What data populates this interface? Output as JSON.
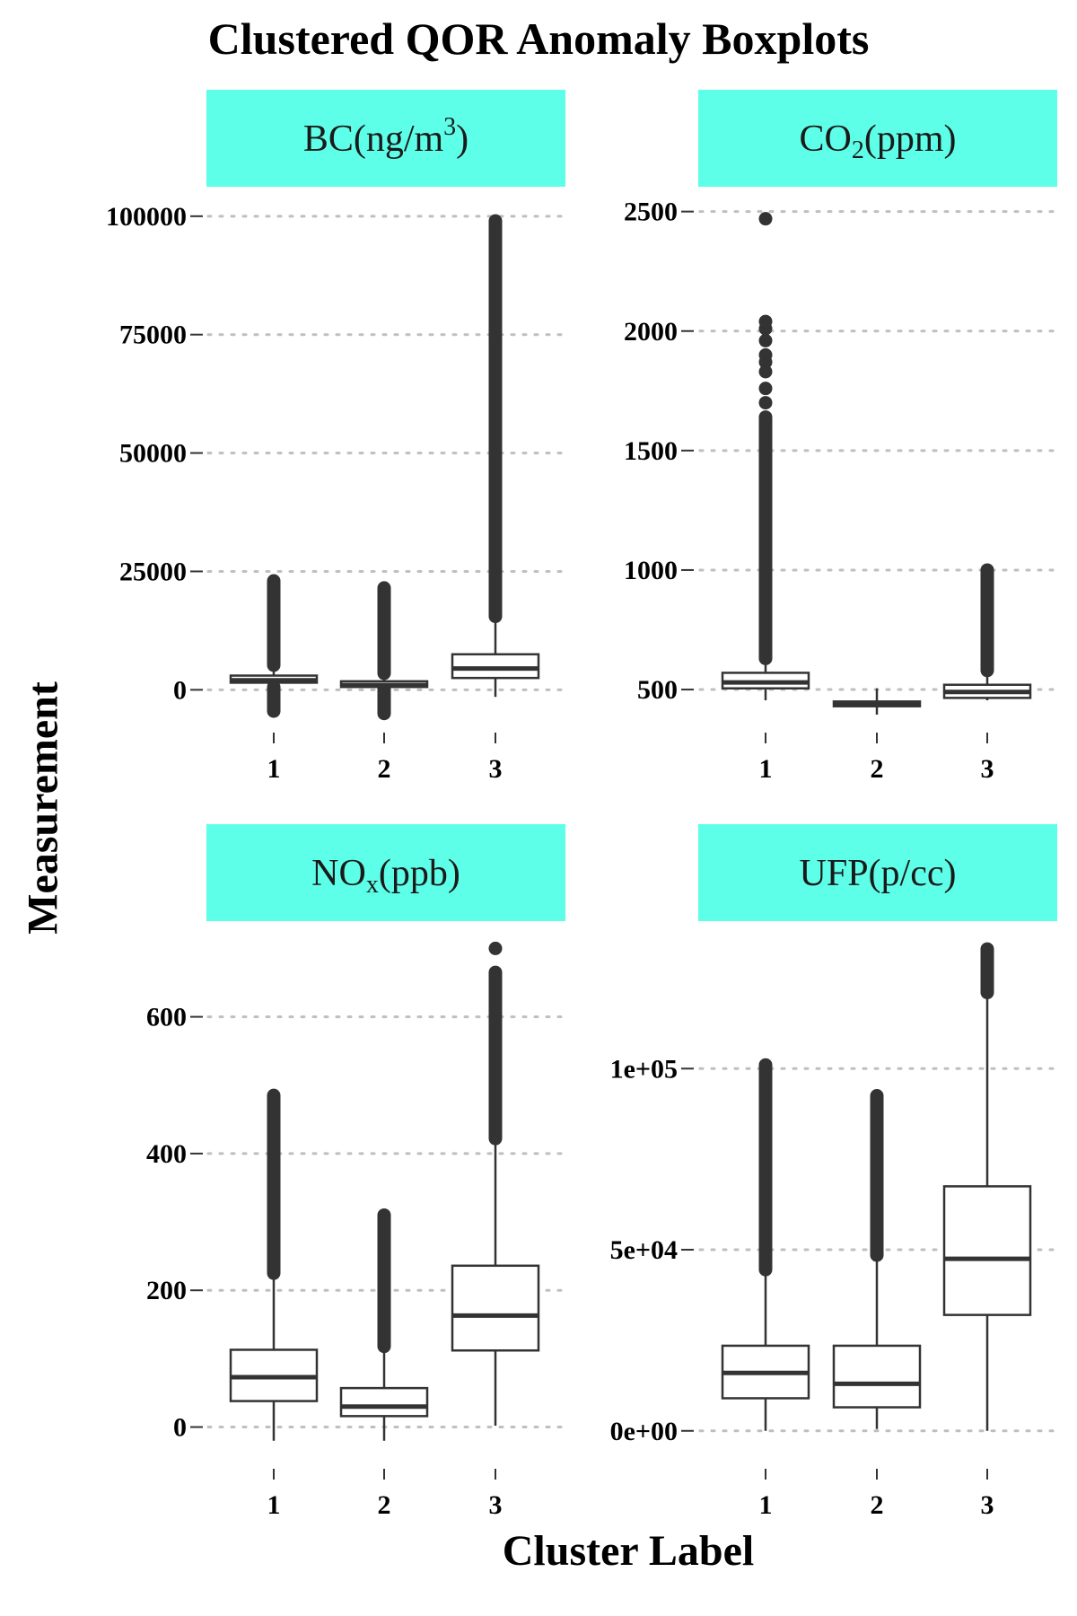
{
  "title": "Clustered QOR Anomaly Boxplots",
  "xlabel": "Cluster Label",
  "ylabel": "Measurement",
  "colors": {
    "strip": "#5effe8",
    "box_line": "#333333",
    "outlier": "#333333",
    "grid": "#bfbfbf"
  },
  "chart_data": [
    {
      "type": "boxplot",
      "strip_main": "BC(ng/m",
      "strip_sub": "",
      "strip_sup": "3",
      "strip_tail": ")",
      "categories": [
        "1",
        "2",
        "3"
      ],
      "ylim": [
        -6000,
        103000
      ],
      "yticks": [
        0,
        25000,
        50000,
        75000,
        100000
      ],
      "ytick_labels": [
        "0",
        "25000",
        "50000",
        "75000",
        "100000"
      ],
      "boxes": [
        {
          "whisker_low": 600,
          "q1": 1500,
          "median": 2000,
          "q3": 3000,
          "whisker_high": 5200,
          "outliers_low": [
            -4500,
            600
          ],
          "outliers_high": [
            5200,
            23000
          ]
        },
        {
          "whisker_low": 300,
          "q1": 600,
          "median": 1000,
          "q3": 1800,
          "whisker_high": 3500,
          "outliers_low": [
            -5000,
            300
          ],
          "outliers_high": [
            3500,
            21500
          ]
        },
        {
          "whisker_low": -1500,
          "q1": 2500,
          "median": 4500,
          "q3": 7500,
          "whisker_high": 15500,
          "outliers_low": [],
          "outliers_high": [
            15500,
            99000
          ]
        }
      ]
    },
    {
      "type": "boxplot",
      "strip_main": "CO",
      "strip_sub": "2",
      "strip_sup": "",
      "strip_tail": "(ppm)",
      "categories": [
        "1",
        "2",
        "3"
      ],
      "ylim": [
        380,
        2540
      ],
      "yticks": [
        500,
        1000,
        1500,
        2000,
        2500
      ],
      "ytick_labels": [
        "500",
        "1000",
        "1500",
        "2000",
        "2500"
      ],
      "boxes": [
        {
          "whisker_low": 455,
          "q1": 505,
          "median": 530,
          "q3": 570,
          "whisker_high": 630,
          "outliers_low": [],
          "outliers_high": [
            630,
            1640
          ],
          "outlier_points": [
            1700,
            1760,
            1830,
            1870,
            1900,
            1960,
            2010,
            2040,
            2470
          ]
        },
        {
          "whisker_low": 395,
          "q1": 430,
          "median": 440,
          "q3": 450,
          "whisker_high": 505,
          "outliers_low": [],
          "outliers_high": []
        },
        {
          "whisker_low": 455,
          "q1": 465,
          "median": 490,
          "q3": 520,
          "whisker_high": 580,
          "outliers_low": [],
          "outliers_high": [
            580,
            1000
          ]
        }
      ]
    },
    {
      "type": "boxplot",
      "strip_main": "NO",
      "strip_sub": "x",
      "strip_sup": "",
      "strip_tail": "(ppb)",
      "categories": [
        "1",
        "2",
        "3"
      ],
      "ylim": [
        -40,
        715
      ],
      "yticks": [
        0,
        200,
        400,
        600
      ],
      "ytick_labels": [
        "0",
        "200",
        "400",
        "600"
      ],
      "boxes": [
        {
          "whisker_low": -20,
          "q1": 38,
          "median": 73,
          "q3": 113,
          "whisker_high": 225,
          "outliers_low": [],
          "outliers_high": [
            225,
            485
          ]
        },
        {
          "whisker_low": -20,
          "q1": 16,
          "median": 30,
          "q3": 57,
          "whisker_high": 118,
          "outliers_low": [],
          "outliers_high": [
            118,
            310
          ]
        },
        {
          "whisker_low": 2,
          "q1": 112,
          "median": 163,
          "q3": 236,
          "whisker_high": 422,
          "outliers_low": [],
          "outliers_high": [
            422,
            665
          ],
          "outlier_points": [
            700
          ]
        }
      ]
    },
    {
      "type": "boxplot",
      "strip_main": "UFP(p/cc)",
      "strip_sub": "",
      "strip_sup": "",
      "strip_tail": "",
      "categories": [
        "1",
        "2",
        "3"
      ],
      "ylim": [
        -6500,
        136000
      ],
      "yticks": [
        0,
        50000,
        100000
      ],
      "ytick_labels": [
        "0e+00",
        "5e+04",
        "1e+05"
      ],
      "boxes": [
        {
          "whisker_low": 0,
          "q1": 9000,
          "median": 16000,
          "q3": 23500,
          "whisker_high": 44500,
          "outliers_low": [],
          "outliers_high": [
            44500,
            101000
          ]
        },
        {
          "whisker_low": 500,
          "q1": 6500,
          "median": 13000,
          "q3": 23500,
          "whisker_high": 48500,
          "outliers_low": [],
          "outliers_high": [
            48500,
            92500
          ]
        },
        {
          "whisker_low": 0,
          "q1": 32000,
          "median": 47500,
          "q3": 67500,
          "whisker_high": 121000,
          "outliers_low": [],
          "outliers_high": [
            121000,
            133000
          ]
        }
      ]
    }
  ]
}
